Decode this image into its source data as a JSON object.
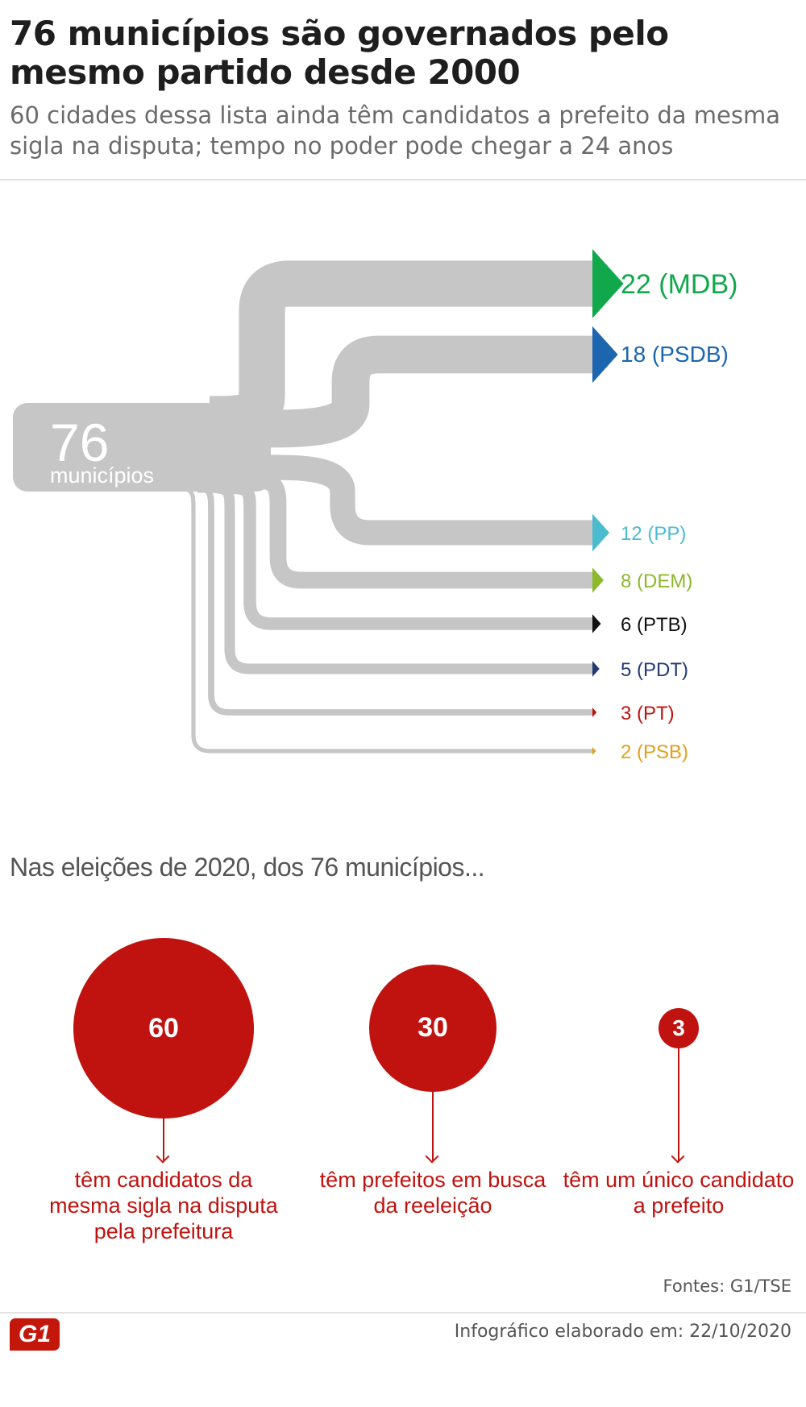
{
  "header": {
    "title": "76 municípios são governados pelo mesmo partido desde 2000",
    "subtitle": "60 cidades dessa lista ainda têm candidatos a prefeito da mesma sigla na disputa; tempo no poder pode chegar a 24 anos"
  },
  "chart_data": {
    "type": "flow",
    "source": {
      "value": "76",
      "label": "municípios"
    },
    "branches": [
      {
        "value": 22,
        "party": "MDB",
        "label": "22 (MDB)",
        "color": "#11a84c"
      },
      {
        "value": 18,
        "party": "PSDB",
        "label": "18 (PSDB)",
        "color": "#1c66b0"
      },
      {
        "value": 12,
        "party": "PP",
        "label": "12 (PP)",
        "color": "#4bbcd0"
      },
      {
        "value": 8,
        "party": "DEM",
        "label": "8 (DEM)",
        "color": "#8cb92a"
      },
      {
        "value": 6,
        "party": "PTB",
        "label": "6 (PTB)",
        "color": "#111111"
      },
      {
        "value": 5,
        "party": "PDT",
        "label": "5 (PDT)",
        "color": "#233a78"
      },
      {
        "value": 3,
        "party": "PT",
        "label": "3 (PT)",
        "color": "#c0130f"
      },
      {
        "value": 2,
        "party": "PSB",
        "label": "2 (PSB)",
        "color": "#e0a11b"
      }
    ]
  },
  "stats": {
    "heading": "Nas eleições de 2020, dos 76 municípios...",
    "items": [
      {
        "value": 60,
        "label": "60",
        "caption": "têm candidatos da mesma sigla na disputa pela prefeitura"
      },
      {
        "value": 30,
        "label": "30",
        "caption": "têm prefeitos em busca da reeleição"
      },
      {
        "value": 3,
        "label": "3",
        "caption": "têm um único candidato a prefeito"
      }
    ]
  },
  "footer": {
    "sources": "Fontes: G1/TSE",
    "created": "Infográfico elaborado em: 22/10/2020",
    "logo": "G1"
  },
  "colors": {
    "accent_red": "#c0130f",
    "flow_gray": "#c6c6c6"
  }
}
